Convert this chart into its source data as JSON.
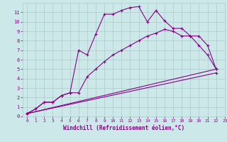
{
  "xlabel": "Windchill (Refroidissement éolien,°C)",
  "bg_color": "#cce8e8",
  "grid_color": "#aacccc",
  "line_color": "#880088",
  "line1_x": [
    0,
    1,
    2,
    3,
    4,
    5,
    6,
    7,
    8,
    9,
    10,
    11,
    12,
    13,
    14,
    15,
    16,
    17,
    18,
    19,
    20,
    21,
    22
  ],
  "line1_y": [
    0.3,
    0.8,
    1.5,
    1.5,
    2.2,
    2.5,
    7.0,
    6.5,
    8.7,
    10.8,
    10.8,
    11.2,
    11.5,
    11.6,
    10.0,
    11.2,
    10.1,
    9.3,
    9.3,
    8.5,
    7.5,
    6.5,
    5.0
  ],
  "line2_x": [
    0,
    1,
    2,
    3,
    4,
    5,
    6,
    7,
    8,
    9,
    10,
    11,
    12,
    13,
    14,
    15,
    16,
    17,
    18,
    19,
    20,
    21,
    22
  ],
  "line2_y": [
    0.3,
    0.8,
    1.5,
    1.5,
    2.2,
    2.5,
    2.5,
    4.2,
    5.0,
    5.8,
    6.5,
    7.0,
    7.5,
    8.0,
    8.5,
    8.8,
    9.2,
    9.0,
    8.5,
    8.5,
    8.5,
    7.5,
    5.0
  ],
  "line3_x": [
    0,
    22
  ],
  "line3_y": [
    0.3,
    5.0
  ],
  "line4_x": [
    0,
    22
  ],
  "line4_y": [
    0.3,
    4.6
  ],
  "xlim": [
    -0.5,
    23
  ],
  "ylim": [
    0,
    12.0
  ],
  "xticks": [
    0,
    1,
    2,
    3,
    4,
    5,
    6,
    7,
    8,
    9,
    10,
    11,
    12,
    13,
    14,
    15,
    16,
    17,
    18,
    19,
    20,
    21,
    22,
    23
  ],
  "yticks": [
    0,
    1,
    2,
    3,
    4,
    5,
    6,
    7,
    8,
    9,
    10,
    11
  ]
}
